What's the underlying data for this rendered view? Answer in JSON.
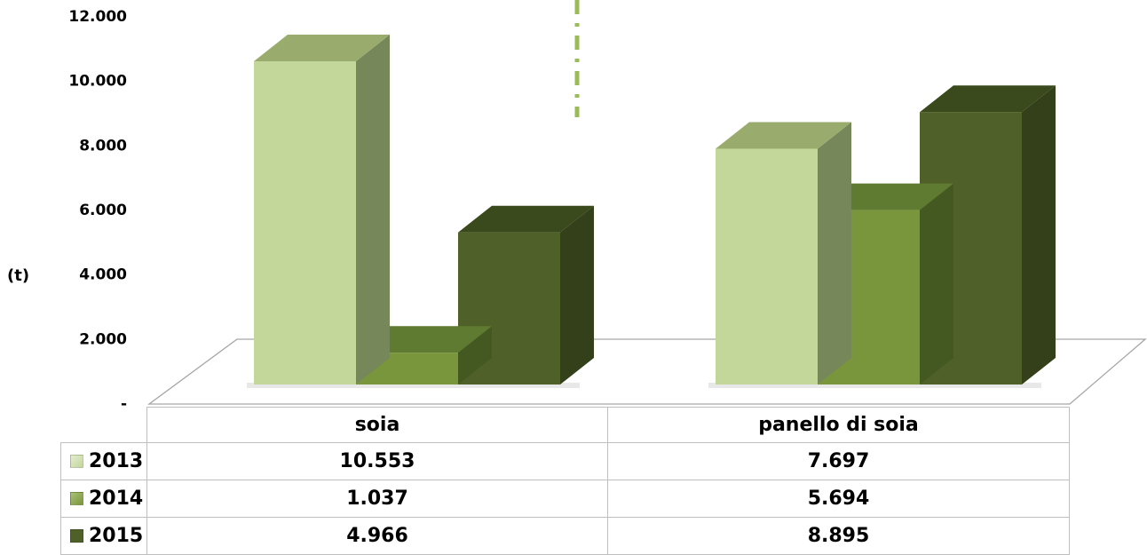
{
  "chart_data": {
    "type": "bar",
    "title": "",
    "xlabel": "",
    "ylabel": "(t)",
    "ylim": [
      0,
      12000
    ],
    "yticks": [
      0,
      2000,
      4000,
      6000,
      8000,
      10000,
      12000
    ],
    "ytick_labels": [
      "-",
      "2.000",
      "4.000",
      "6.000",
      "8.000",
      "10.000",
      "12.000"
    ],
    "categories": [
      "soia",
      "panello di soia"
    ],
    "series": [
      {
        "name": "2013",
        "values": [
          10553,
          7697
        ],
        "labels": [
          "10.553",
          "7.697"
        ],
        "color": "#c4d79b",
        "side": "#76875a",
        "top": "#9aac6d"
      },
      {
        "name": "2014",
        "values": [
          1037,
          5694
        ],
        "labels": [
          "1.037",
          "5.694"
        ],
        "color": "#7a963d",
        "side": "#445922",
        "top": "#5f7a31"
      },
      {
        "name": "2015",
        "values": [
          4966,
          8895
        ],
        "labels": [
          "4.966",
          "8.895"
        ],
        "color": "#4f6128",
        "side": "#33401a",
        "top": "#3a4a1d"
      }
    ],
    "grid": false,
    "legend": "data-table"
  }
}
